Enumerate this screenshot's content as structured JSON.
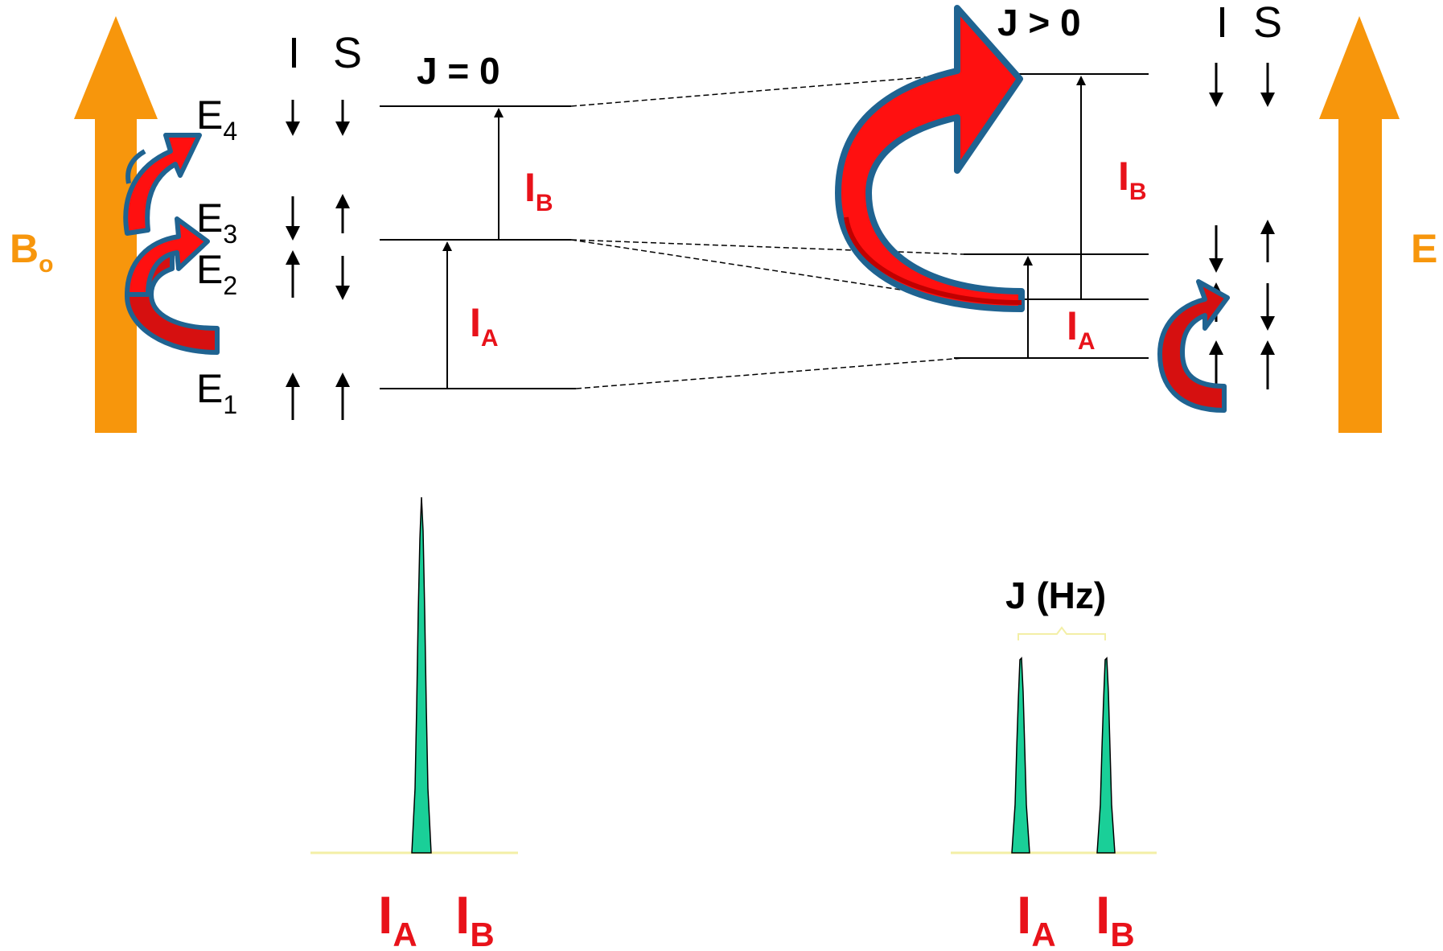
{
  "left_panel": {
    "field_label": {
      "main": "B",
      "sub": "o"
    },
    "col_I": "I",
    "col_S": "S",
    "coupling": "J = 0",
    "levels": [
      {
        "main": "E",
        "sub": "4",
        "I": "down",
        "S": "down"
      },
      {
        "main": "E",
        "sub": "3",
        "I": "down",
        "S": "up"
      },
      {
        "main": "E",
        "sub": "2",
        "I": "up",
        "S": "down"
      },
      {
        "main": "E",
        "sub": "1",
        "I": "up",
        "S": "up"
      }
    ],
    "transition_B": {
      "main": "I",
      "sub": "B"
    },
    "transition_A": {
      "main": "I",
      "sub": "A"
    }
  },
  "right_panel": {
    "field_label": "E",
    "col_I": "I",
    "col_S": "S",
    "coupling": "J > 0",
    "transition_B": {
      "main": "I",
      "sub": "B"
    },
    "transition_A": {
      "main": "I",
      "sub": "A"
    },
    "levels": [
      {
        "I": "down",
        "S": "down"
      },
      {
        "I": "down",
        "S": "up"
      },
      {
        "I": "up",
        "S": "down"
      },
      {
        "I": "up",
        "S": "up"
      }
    ]
  },
  "spectra": {
    "left": {
      "label_A": {
        "main": "I",
        "sub": "A"
      },
      "label_B": {
        "main": "I",
        "sub": "B"
      }
    },
    "right": {
      "j_label": "J (Hz)",
      "label_A": {
        "main": "I",
        "sub": "A"
      },
      "label_B": {
        "main": "I",
        "sub": "B"
      }
    }
  },
  "colors": {
    "field_arrow": "#F7960C",
    "label_red": "#E8121A",
    "label_orange": "#F7960C",
    "curved_arrow_fill": "#FF0000",
    "curved_arrow_dark": "#C00000",
    "curved_arrow_stroke": "#1F6391",
    "peak_fill": "#1ACF98",
    "baseline": "#F3EFA6"
  }
}
